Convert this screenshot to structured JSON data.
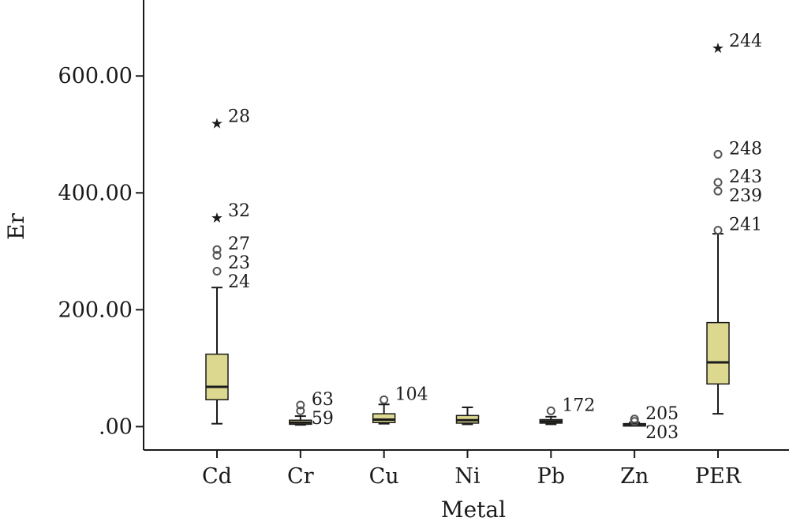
{
  "chart_data": {
    "type": "boxplot",
    "xlabel": "Metal",
    "ylabel": "Er",
    "ylim": [
      -40,
      730
    ],
    "yticks": [
      {
        "value": 0,
        "label": ".00"
      },
      {
        "value": 200,
        "label": "200.00"
      },
      {
        "value": 400,
        "label": "400.00"
      },
      {
        "value": 600,
        "label": "600.00"
      }
    ],
    "box_color": "#dcd890",
    "line_color": "#1a1a1a",
    "categories": [
      "Cd",
      "Cr",
      "Cu",
      "Ni",
      "Pb",
      "Zn",
      "PER"
    ],
    "boxes": [
      {
        "category": "Cd",
        "whisker_low": 5,
        "q1": 46,
        "median": 68,
        "q3": 124,
        "whisker_high": 238,
        "outliers": [
          {
            "value": 521,
            "marker": "star",
            "label": "28"
          },
          {
            "value": 360,
            "marker": "star",
            "label": "32"
          },
          {
            "value": 303,
            "marker": "circle",
            "label": "27"
          },
          {
            "value": 293,
            "marker": "circle",
            "label": "23"
          },
          {
            "value": 266,
            "marker": "circle",
            "label": "24"
          }
        ]
      },
      {
        "category": "Cr",
        "whisker_low": 3,
        "q1": 4,
        "median": 7,
        "q3": 11,
        "whisker_high": 18,
        "outliers": [
          {
            "value": 37,
            "marker": "circle",
            "label": "63"
          },
          {
            "value": 27,
            "marker": "circle",
            "label": "59"
          }
        ]
      },
      {
        "category": "Cu",
        "whisker_low": 5,
        "q1": 7,
        "median": 12,
        "q3": 22,
        "whisker_high": 38,
        "outliers": [
          {
            "value": 46,
            "marker": "circle",
            "label": "104"
          }
        ]
      },
      {
        "category": "Ni",
        "whisker_low": 4,
        "q1": 6,
        "median": 11,
        "q3": 19,
        "whisker_high": 33,
        "outliers": []
      },
      {
        "category": "Pb",
        "whisker_low": 4,
        "q1": 6,
        "median": 9,
        "q3": 12,
        "whisker_high": 17,
        "outliers": [
          {
            "value": 27,
            "marker": "circle",
            "label": "172"
          }
        ]
      },
      {
        "category": "Zn",
        "whisker_low": 2,
        "q1": 3,
        "median": 4,
        "q3": 5,
        "whisker_high": 7,
        "outliers": [
          {
            "value": 13,
            "marker": "circle",
            "label": "205"
          },
          {
            "value": 9,
            "marker": "circle",
            "label": "203"
          }
        ]
      },
      {
        "category": "PER",
        "whisker_low": 22,
        "q1": 73,
        "median": 110,
        "q3": 178,
        "whisker_high": 330,
        "outliers": [
          {
            "value": 650,
            "marker": "star",
            "label": "244"
          },
          {
            "value": 466,
            "marker": "circle",
            "label": "248"
          },
          {
            "value": 418,
            "marker": "circle",
            "label": "243"
          },
          {
            "value": 403,
            "marker": "circle",
            "label": "239"
          },
          {
            "value": 336,
            "marker": "circle",
            "label": "241"
          }
        ]
      }
    ]
  }
}
